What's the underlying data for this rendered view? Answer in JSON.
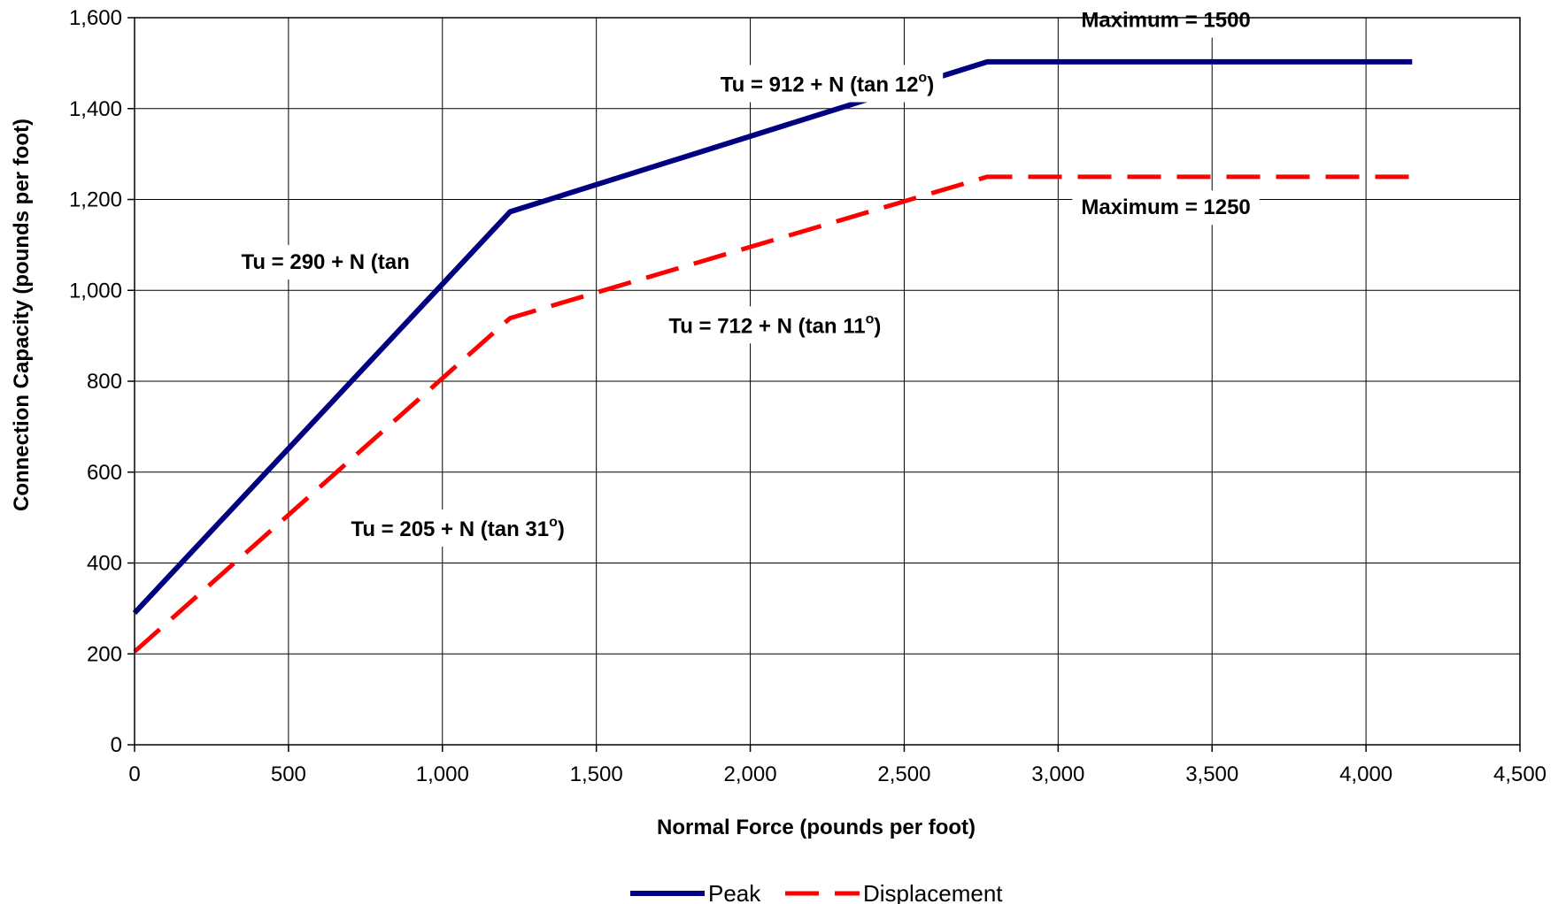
{
  "chart_data": {
    "type": "line",
    "xlabel": "Normal Force (pounds per foot)",
    "ylabel": "Connection Capacity (pounds per foot)",
    "xlim": [
      0,
      4500
    ],
    "ylim": [
      0,
      1600
    ],
    "x_ticks": [
      "0",
      "500",
      "1,000",
      "1,500",
      "2,000",
      "2,500",
      "3,000",
      "3,500",
      "4,000",
      "4,500"
    ],
    "y_ticks": [
      "0",
      "200",
      "400",
      "600",
      "800",
      "1,000",
      "1,200",
      "1,400",
      "1,600"
    ],
    "x_tick_values": [
      0,
      500,
      1000,
      1500,
      2000,
      2500,
      3000,
      3500,
      4000,
      4500
    ],
    "y_tick_values": [
      0,
      200,
      400,
      600,
      800,
      1000,
      1200,
      1400,
      1600
    ],
    "grid": true,
    "legend_position": "bottom-center",
    "series": [
      {
        "name": "Peak",
        "color": "#000080",
        "style": "solid",
        "x": [
          0,
          1220,
          2770,
          4150
        ],
        "y": [
          290,
          1173,
          1503,
          1503
        ]
      },
      {
        "name": "Displacement",
        "color": "#ff0000",
        "style": "dashed",
        "x": [
          0,
          1220,
          2770,
          4150
        ],
        "y": [
          205,
          939,
          1250,
          1250
        ]
      }
    ],
    "annotations": [
      {
        "id": "max1500",
        "text": "Maximum = 1500",
        "sup": "",
        "tail": "",
        "x": 3350,
        "y": 1595
      },
      {
        "id": "tu912",
        "text": "Tu = 912 + N (tan 12",
        "sup": "o",
        "tail": ")",
        "x": 2250,
        "y": 1453
      },
      {
        "id": "max1250",
        "text": "Maximum = 1250",
        "sup": "",
        "tail": "",
        "x": 3350,
        "y": 1183
      },
      {
        "id": "tu290",
        "text": "Tu = 290 + N (tan",
        "sup": "",
        "tail": "",
        "x": 620,
        "y": 1063
      },
      {
        "id": "tu712",
        "text": "Tu = 712 + N (tan 11",
        "sup": "o",
        "tail": ")",
        "x": 2080,
        "y": 922
      },
      {
        "id": "tu205",
        "text": "Tu = 205 + N (tan 31",
        "sup": "o",
        "tail": ")",
        "x": 1050,
        "y": 475
      }
    ]
  }
}
